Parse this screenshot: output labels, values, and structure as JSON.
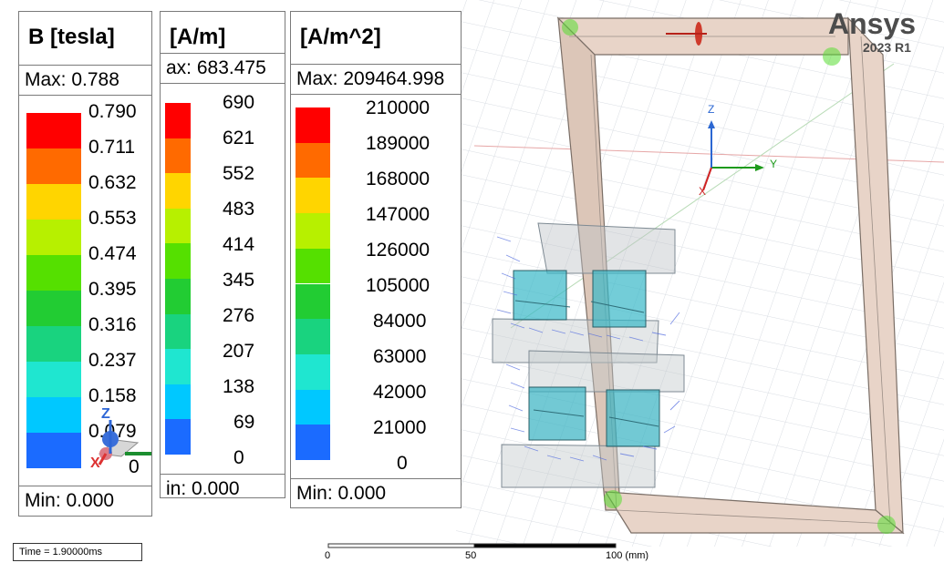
{
  "brand": {
    "name": "Ansys",
    "version": "2023 R1"
  },
  "time_readout": {
    "label": "Time",
    "value": "= 1.90000ms"
  },
  "scale_bar": {
    "labels": [
      "0",
      "50",
      "100 (mm)"
    ]
  },
  "legends": [
    {
      "title": "B [tesla]",
      "max_text": "Max: 0.788",
      "min_text": "Min: 0.000",
      "ticks": [
        "0.790",
        "0.711",
        "0.632",
        "0.553",
        "0.474",
        "0.395",
        "0.316",
        "0.237",
        "0.158",
        "0.079",
        "0"
      ]
    },
    {
      "title": "[A/m]",
      "max_text": "ax: 683.475",
      "min_text": "in:   0.000",
      "ticks": [
        "690",
        "621",
        "552",
        "483",
        "414",
        "345",
        "276",
        "207",
        "138",
        "69",
        "0"
      ]
    },
    {
      "title": "[A/m^2]",
      "max_text": "Max:  209464.998",
      "min_text": "Min:       0.000",
      "ticks": [
        "210000",
        "189000",
        "168000",
        "147000",
        "126000",
        "105000",
        "84000",
        "63000",
        "42000",
        "21000",
        "0"
      ]
    }
  ],
  "colormap": [
    "#ff0000",
    "#ff6a00",
    "#ffd500",
    "#b7f000",
    "#55e000",
    "#22cc33",
    "#19d37f",
    "#1fe6d0",
    "#00c8ff",
    "#1b6bff",
    "#0000ff"
  ],
  "axis_triads": [
    {
      "x": "X",
      "y": "Y",
      "z": "Z"
    },
    {
      "x": "X",
      "y": "Y",
      "z": "Z"
    }
  ]
}
